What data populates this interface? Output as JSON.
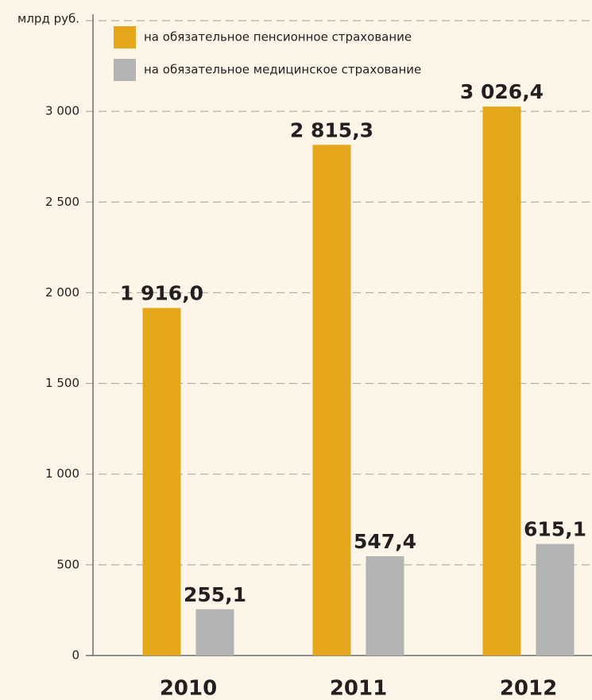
{
  "chart_data": {
    "type": "bar",
    "axis_label": "млрд руб.",
    "categories": [
      "2010",
      "2011",
      "2012"
    ],
    "series": [
      {
        "name": "на обязательное пенсионное страхование",
        "color": "#e5a71a",
        "values": [
          1916.0,
          2815.3,
          3026.4
        ],
        "value_labels": [
          "1 916,0",
          "2 815,3",
          "3 026,4"
        ]
      },
      {
        "name": "на обязательное медицинское страхование",
        "color": "#b3b3b4",
        "values": [
          255.1,
          547.4,
          615.1
        ],
        "value_labels": [
          "255,1",
          "547,4",
          "615,1"
        ]
      }
    ],
    "ylim": [
      0,
      3500
    ],
    "yticks": [
      0,
      500,
      {
        "value": 1000,
        "label": "1 000"
      },
      {
        "value": 1500,
        "label": "1 500"
      },
      {
        "value": 2000,
        "label": "2 000"
      },
      {
        "value": 2500,
        "label": "2 500"
      },
      {
        "value": 3000,
        "label": "3 000"
      }
    ],
    "grid": true
  }
}
